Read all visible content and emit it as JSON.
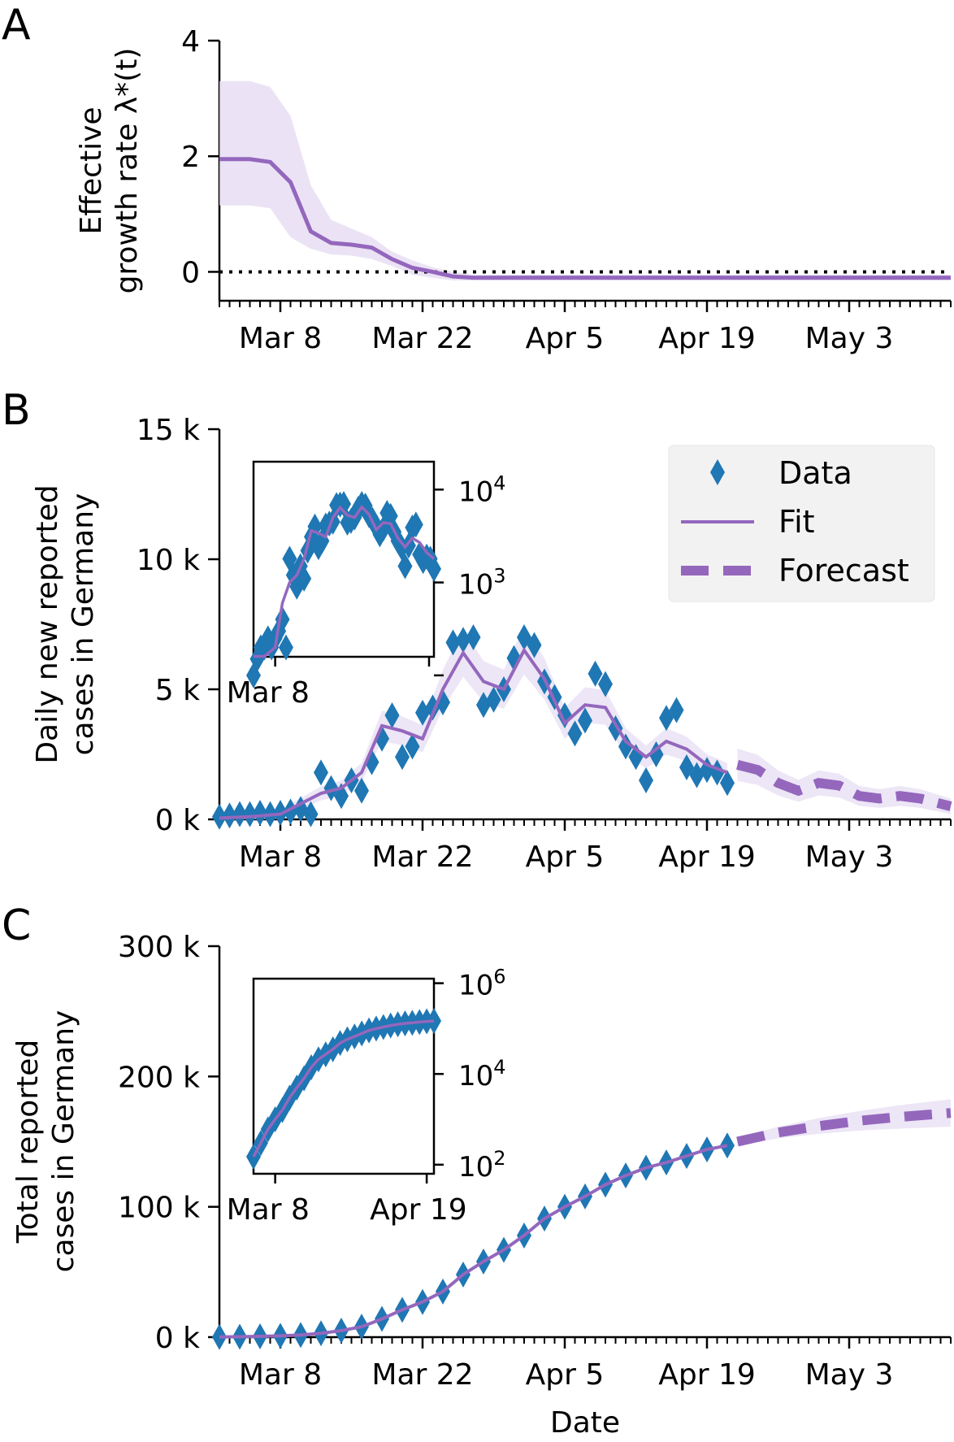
{
  "figure": {
    "x_label": "Date",
    "date_ticks": [
      "Mar 8",
      "Mar 22",
      "Apr 5",
      "Apr 19",
      "May 3"
    ],
    "colors": {
      "data": "#1f77b4",
      "fit": "#9467bd",
      "band": "#e6dcf2",
      "zero_line": "#000000"
    }
  },
  "chart_data": [
    {
      "panel": "A",
      "type": "line",
      "ylabel_line1": "Effective",
      "ylabel_line2": "growth rate λ*(t)",
      "yticks": [
        "0",
        "2",
        "4"
      ],
      "ylim": [
        -0.5,
        4
      ],
      "xlim": [
        "2020-03-02",
        "2020-05-13"
      ],
      "x": [
        "2020-03-02",
        "2020-03-05",
        "2020-03-07",
        "2020-03-09",
        "2020-03-11",
        "2020-03-13",
        "2020-03-15",
        "2020-03-17",
        "2020-03-19",
        "2020-03-21",
        "2020-03-23",
        "2020-03-25",
        "2020-03-27",
        "2020-05-13"
      ],
      "series": [
        {
          "values": [
            1.95,
            1.95,
            1.9,
            1.55,
            0.7,
            0.5,
            0.47,
            0.42,
            0.22,
            0.07,
            0.0,
            -0.08,
            -0.1,
            -0.1
          ]
        }
      ],
      "band_upper": [
        3.3,
        3.3,
        3.2,
        2.7,
        1.5,
        0.9,
        0.75,
        0.6,
        0.35,
        0.2,
        0.08,
        0.0,
        -0.05,
        -0.05
      ],
      "band_lower": [
        1.15,
        1.15,
        1.1,
        0.6,
        0.4,
        0.3,
        0.28,
        0.22,
        0.1,
        -0.05,
        -0.1,
        -0.15,
        -0.15,
        -0.15
      ],
      "reference_line": 0
    },
    {
      "panel": "B",
      "type": "scatter",
      "ylabel_line1": "Daily new reported",
      "ylabel_line2": "cases in Germany",
      "yticks": [
        "0 k",
        "5 k",
        "10 k",
        "15 k"
      ],
      "ylim": [
        0,
        15000
      ],
      "xlim": [
        "2020-03-02",
        "2020-05-13"
      ],
      "legend": {
        "position": "upper right",
        "entries": [
          "Data",
          "Fit",
          "Forecast"
        ]
      },
      "data_dates": [
        "2020-03-02",
        "2020-03-03",
        "2020-03-04",
        "2020-03-05",
        "2020-03-06",
        "2020-03-07",
        "2020-03-08",
        "2020-03-09",
        "2020-03-10",
        "2020-03-11",
        "2020-03-12",
        "2020-03-13",
        "2020-03-14",
        "2020-03-15",
        "2020-03-16",
        "2020-03-17",
        "2020-03-18",
        "2020-03-19",
        "2020-03-20",
        "2020-03-21",
        "2020-03-22",
        "2020-03-23",
        "2020-03-24",
        "2020-03-25",
        "2020-03-26",
        "2020-03-27",
        "2020-03-28",
        "2020-03-29",
        "2020-03-30",
        "2020-03-31",
        "2020-04-01",
        "2020-04-02",
        "2020-04-03",
        "2020-04-04",
        "2020-04-05",
        "2020-04-06",
        "2020-04-07",
        "2020-04-08",
        "2020-04-09",
        "2020-04-10",
        "2020-04-11",
        "2020-04-12",
        "2020-04-13",
        "2020-04-14",
        "2020-04-15",
        "2020-04-16",
        "2020-04-17",
        "2020-04-18",
        "2020-04-19",
        "2020-04-20",
        "2020-04-21"
      ],
      "data_values": [
        100,
        150,
        200,
        200,
        250,
        200,
        250,
        300,
        400,
        200,
        1800,
        1200,
        900,
        1500,
        1100,
        2200,
        3100,
        4000,
        2400,
        2800,
        4100,
        4300,
        4500,
        6800,
        6900,
        7000,
        4400,
        4600,
        5000,
        6200,
        7000,
        6700,
        5300,
        4700,
        4000,
        3300,
        3800,
        5600,
        5200,
        3500,
        2800,
        2400,
        1500,
        2500,
        3900,
        4200,
        2000,
        1700,
        1900,
        1800,
        1400
      ],
      "fit_dates": [
        "2020-03-02",
        "2020-03-05",
        "2020-03-08",
        "2020-03-10",
        "2020-03-12",
        "2020-03-14",
        "2020-03-16",
        "2020-03-18",
        "2020-03-20",
        "2020-03-22",
        "2020-03-24",
        "2020-03-26",
        "2020-03-28",
        "2020-03-30",
        "2020-04-01",
        "2020-04-03",
        "2020-04-05",
        "2020-04-07",
        "2020-04-09",
        "2020-04-11",
        "2020-04-13",
        "2020-04-15",
        "2020-04-17",
        "2020-04-19",
        "2020-04-21"
      ],
      "fit_values": [
        50,
        100,
        200,
        600,
        1000,
        1200,
        1800,
        3600,
        3400,
        3100,
        5000,
        6400,
        5300,
        5000,
        6500,
        5400,
        3700,
        4400,
        4300,
        3000,
        2400,
        3000,
        2700,
        2100,
        1800
      ],
      "forecast_dates": [
        "2020-04-22",
        "2020-04-24",
        "2020-04-26",
        "2020-04-28",
        "2020-04-30",
        "2020-05-02",
        "2020-05-04",
        "2020-05-06",
        "2020-05-08",
        "2020-05-10",
        "2020-05-12",
        "2020-05-13"
      ],
      "forecast_values": [
        2100,
        1900,
        1400,
        1100,
        1400,
        1300,
        900,
        800,
        900,
        800,
        600,
        500
      ],
      "inset": {
        "scale": "log",
        "ylim_log10": [
          2.2,
          4.3
        ],
        "yticks": [
          "10^4",
          "10^3"
        ],
        "ytick_values_log10": [
          4,
          3,
          2
        ],
        "xticks": [
          "Mar 8"
        ],
        "xlim": [
          "2020-03-02",
          "2020-04-21"
        ]
      }
    },
    {
      "panel": "C",
      "type": "scatter",
      "ylabel_line1": "Total reported",
      "ylabel_line2": "cases in Germany",
      "yticks": [
        "0 k",
        "100 k",
        "200 k",
        "300 k"
      ],
      "ylim": [
        0,
        300000
      ],
      "xlim": [
        "2020-03-02",
        "2020-05-13"
      ],
      "data_dates": [
        "2020-03-02",
        "2020-03-04",
        "2020-03-06",
        "2020-03-08",
        "2020-03-10",
        "2020-03-12",
        "2020-03-14",
        "2020-03-16",
        "2020-03-18",
        "2020-03-20",
        "2020-03-22",
        "2020-03-24",
        "2020-03-26",
        "2020-03-28",
        "2020-03-30",
        "2020-04-01",
        "2020-04-03",
        "2020-04-05",
        "2020-04-07",
        "2020-04-09",
        "2020-04-11",
        "2020-04-13",
        "2020-04-15",
        "2020-04-17",
        "2020-04-19",
        "2020-04-21"
      ],
      "data_values": [
        150,
        300,
        600,
        1000,
        1600,
        3000,
        5000,
        8000,
        14000,
        21000,
        27000,
        35000,
        48000,
        58000,
        67000,
        78000,
        91000,
        100000,
        108000,
        117000,
        124000,
        130000,
        134000,
        139000,
        144000,
        147000
      ],
      "forecast_dates": [
        "2020-04-22",
        "2020-04-26",
        "2020-04-30",
        "2020-05-04",
        "2020-05-08",
        "2020-05-13"
      ],
      "forecast_values": [
        150000,
        157000,
        162000,
        166000,
        169000,
        172000
      ],
      "inset": {
        "scale": "log",
        "ylim_log10": [
          1.8,
          6.1
        ],
        "yticks": [
          "10^6",
          "10^4",
          "10^2"
        ],
        "ytick_values_log10": [
          6,
          4,
          2
        ],
        "xticks": [
          "Mar 8",
          "Apr 19"
        ],
        "xlim": [
          "2020-03-02",
          "2020-04-21"
        ]
      }
    }
  ]
}
